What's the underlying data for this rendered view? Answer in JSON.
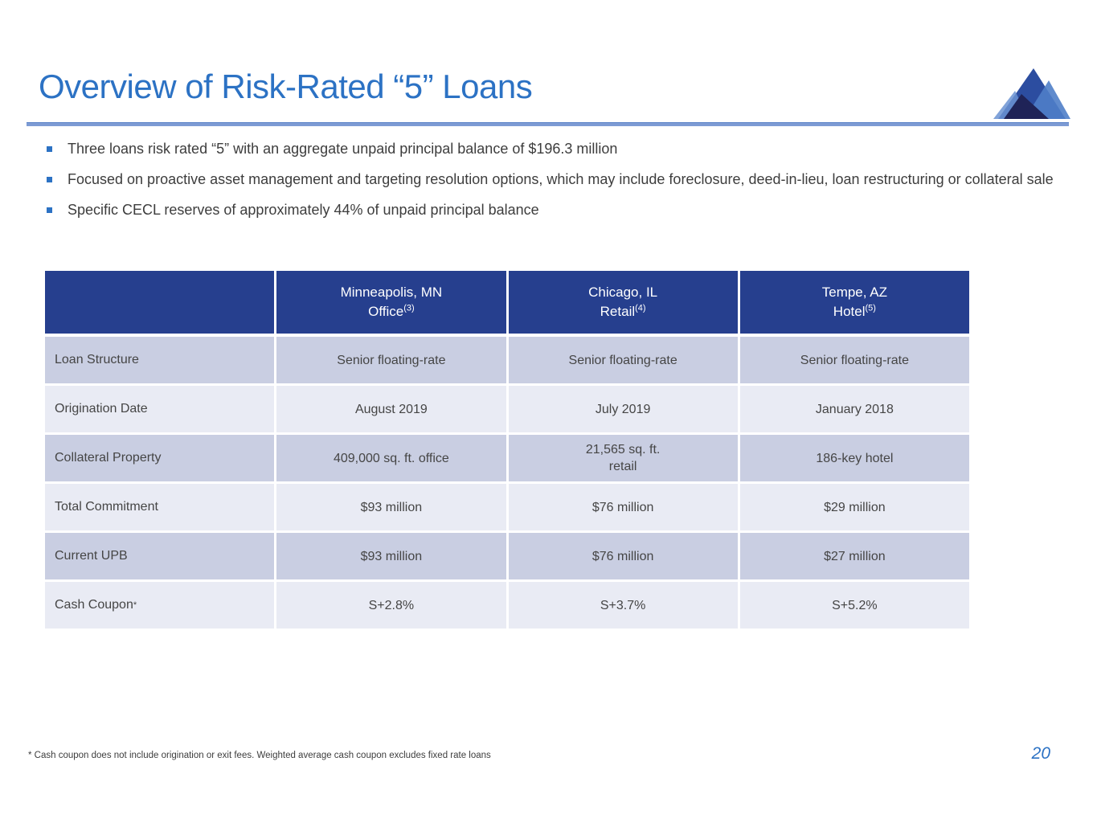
{
  "slide": {
    "title": "Overview of Risk-Rated “5” Loans",
    "bullets": [
      "Three loans risk rated “5” with an aggregate unpaid principal balance of $196.3 million",
      "Focused on proactive asset management and targeting resolution options, which may include foreclosure, deed-in-lieu, loan restructuring or collateral sale",
      "Specific CECL reserves of approximately 44% of unpaid principal balance"
    ],
    "footnote": "* Cash coupon does not include origination or exit fees. Weighted average cash coupon excludes fixed rate loans",
    "page_number": "20"
  },
  "table": {
    "columns": [
      {
        "city": "Minneapolis, MN",
        "type": "Office",
        "footnote_ref": "(3)"
      },
      {
        "city": "Chicago, IL",
        "type": "Retail",
        "footnote_ref": "(4)"
      },
      {
        "city": "Tempe, AZ",
        "type": "Hotel",
        "footnote_ref": "(5)"
      }
    ],
    "rows": [
      {
        "label": "Loan Structure",
        "values": [
          "Senior floating-rate",
          "Senior floating-rate",
          "Senior floating-rate"
        ]
      },
      {
        "label": "Origination Date",
        "values": [
          "August 2019",
          "July 2019",
          "January 2018"
        ]
      },
      {
        "label": "Collateral Property",
        "values": [
          "409,000 sq. ft. office",
          "21,565 sq. ft.\nretail",
          "186-key hotel"
        ]
      },
      {
        "label": "Total Commitment",
        "values": [
          "$93 million",
          "$76 million",
          "$29 million"
        ]
      },
      {
        "label": "Current UPB",
        "values": [
          "$93 million",
          "$76 million",
          "$27 million"
        ]
      },
      {
        "label": "Cash Coupon",
        "label_superscript": "*",
        "values": [
          "S+2.8%",
          "S+3.7%",
          "S+5.2%"
        ]
      }
    ]
  },
  "colors": {
    "title_blue": "#2C72C4",
    "rule_blue": "#7D9BD4",
    "header_navy": "#263F8E",
    "row_shaded": "#C9CEE2",
    "row_light": "#E9EBF4",
    "body_text": "#3D3D3D",
    "logo_navy": "#1F2357",
    "logo_blue": "#2C4DA0",
    "logo_light_blue": "#4F7EC8"
  }
}
